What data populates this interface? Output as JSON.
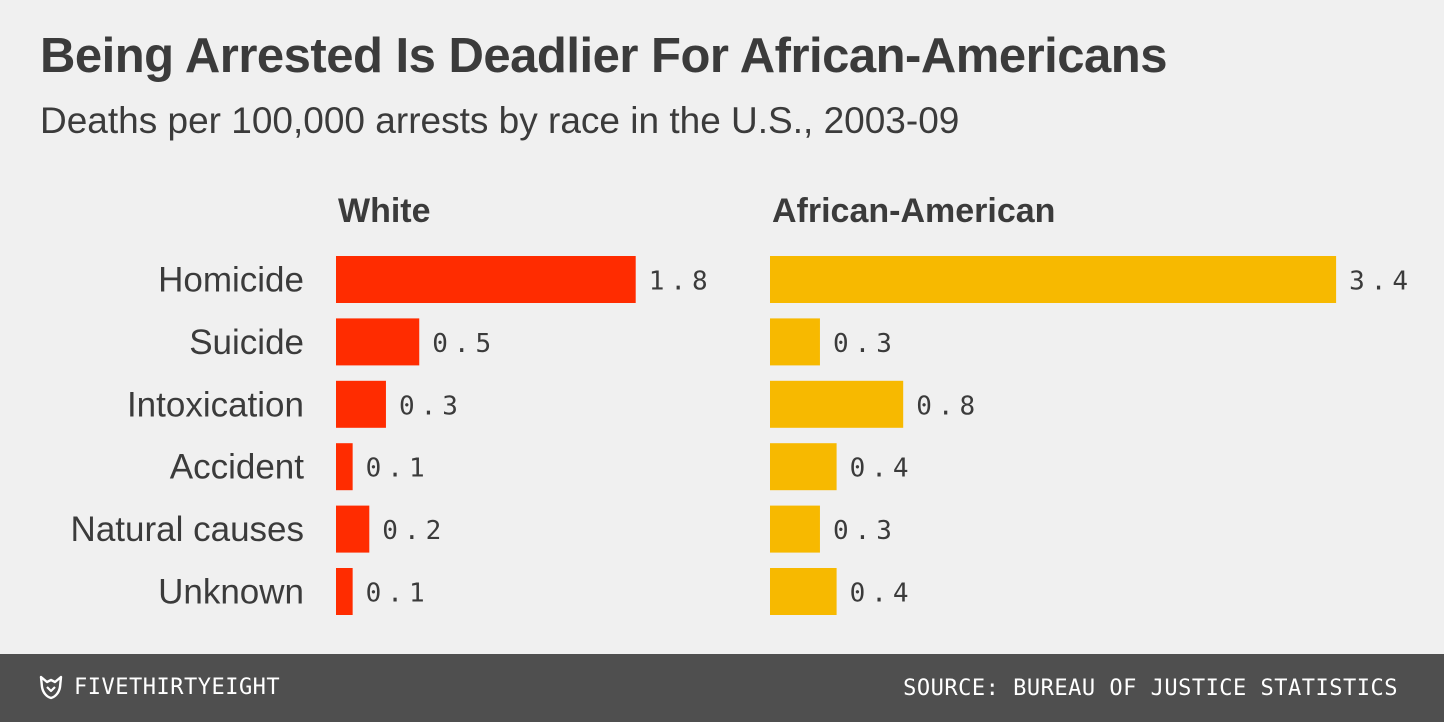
{
  "chart_data": {
    "type": "bar",
    "title": "Being Arrested Is Deadlier For African-Americans",
    "subtitle": "Deaths per 100,000 arrests by race in the U.S., 2003-09",
    "categories": [
      "Homicide",
      "Suicide",
      "Intoxication",
      "Accident",
      "Natural causes",
      "Unknown"
    ],
    "series": [
      {
        "name": "White",
        "color": "#ff2c00",
        "values": [
          1.8,
          0.5,
          0.3,
          0.1,
          0.2,
          0.1
        ]
      },
      {
        "name": "African-American",
        "color": "#f7b900",
        "values": [
          3.4,
          0.3,
          0.8,
          0.4,
          0.3,
          0.4
        ]
      }
    ],
    "orientation": "horizontal",
    "grid": false,
    "legend": "none"
  },
  "footer": {
    "brand": "FIVETHIRTYEIGHT",
    "brand_icon": "fivethirtyeight-fox-icon",
    "source": "SOURCE: BUREAU OF JUSTICE STATISTICS"
  }
}
